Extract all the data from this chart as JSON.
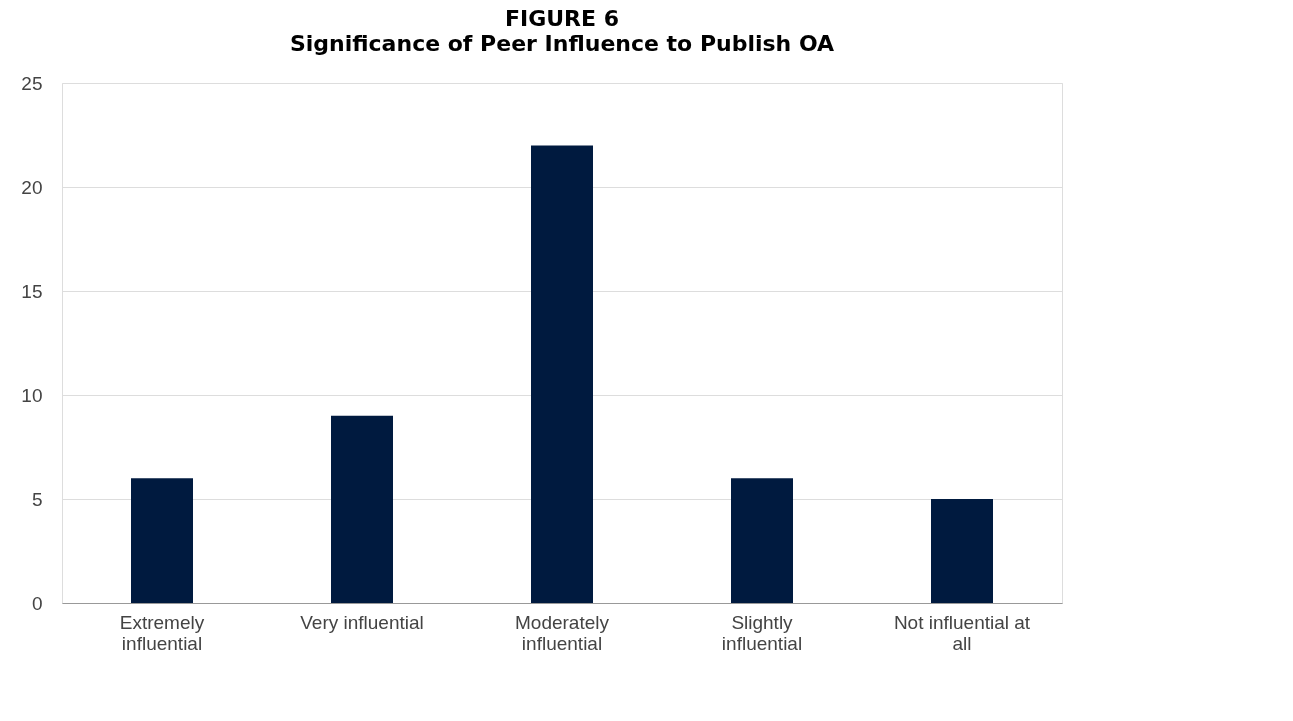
{
  "chart_data": {
    "type": "bar",
    "title": "FIGURE 6",
    "subtitle": "Significance of Peer Influence to Publish OA",
    "categories": [
      "Extremely influential",
      "Very influential",
      "Moderately influential",
      "Slightly influential",
      "Not influential at all"
    ],
    "values": [
      6,
      9,
      22,
      6,
      5
    ],
    "color": "#001a3f",
    "ylim": [
      0,
      25
    ],
    "yticks": [
      0,
      5,
      10,
      15,
      20,
      25
    ],
    "grid": "y"
  }
}
